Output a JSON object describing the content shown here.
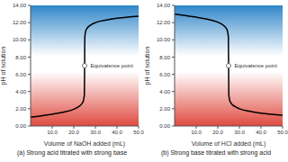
{
  "chart_data": [
    {
      "type": "line",
      "title": "(a) Strong acid titrated with strong base",
      "x_label": "Volume of NaOH added (mL)",
      "y_label": "pH of solution",
      "x": [
        0,
        5,
        10,
        15,
        20,
        22,
        24,
        24.5,
        24.9,
        25,
        25.1,
        25.5,
        26,
        28,
        30,
        35,
        40,
        45,
        50
      ],
      "values": [
        1.0,
        1.18,
        1.37,
        1.6,
        1.95,
        2.2,
        2.69,
        3.0,
        3.7,
        7.0,
        10.3,
        11.0,
        11.29,
        11.75,
        12.0,
        12.3,
        12.5,
        12.64,
        12.75
      ],
      "color": "#000000",
      "marker": "none",
      "line_style": "solid",
      "grid": false,
      "xlim": [
        0,
        50
      ],
      "xticks": [
        {
          "value": 10,
          "label": "10.0"
        },
        {
          "value": 20,
          "label": "20.0"
        },
        {
          "value": 30,
          "label": "30.0"
        },
        {
          "value": 40,
          "label": "40.0"
        },
        {
          "value": 50,
          "label": "50.0"
        }
      ],
      "ylim": [
        0,
        14
      ],
      "yticks": [
        {
          "value": 0,
          "label": "0.00"
        },
        {
          "value": 2,
          "label": "2.00"
        },
        {
          "value": 4,
          "label": "4.00"
        },
        {
          "value": 6,
          "label": "6.00"
        },
        {
          "value": 8,
          "label": "8.00"
        },
        {
          "value": 10,
          "label": "10.00"
        },
        {
          "value": 12,
          "label": "12.00"
        },
        {
          "value": 14,
          "label": "14.00"
        }
      ],
      "annotations": [
        {
          "text": "Equivalence point",
          "x": 25,
          "y": 7
        }
      ]
    },
    {
      "type": "line",
      "title": "(b) Strong base titrated with strong acid",
      "x_label": "Volume of HCl added (mL)",
      "y_label": "pH of solution",
      "x": [
        0,
        5,
        10,
        15,
        20,
        22,
        24,
        24.5,
        24.9,
        25,
        25.1,
        25.5,
        26,
        28,
        30,
        35,
        40,
        45,
        50
      ],
      "values": [
        13.0,
        12.82,
        12.63,
        12.4,
        12.05,
        11.8,
        11.31,
        11.0,
        10.3,
        7.0,
        3.7,
        3.0,
        2.71,
        2.25,
        2.0,
        1.7,
        1.5,
        1.36,
        1.25
      ],
      "color": "#000000",
      "marker": "none",
      "line_style": "solid",
      "grid": false,
      "xlim": [
        0,
        50
      ],
      "xticks": [
        {
          "value": 10,
          "label": "10.0"
        },
        {
          "value": 20,
          "label": "20.0"
        },
        {
          "value": 30,
          "label": "30.0"
        },
        {
          "value": 40,
          "label": "40.0"
        },
        {
          "value": 50,
          "label": "50.0"
        }
      ],
      "ylim": [
        0,
        14
      ],
      "yticks": [
        {
          "value": 0,
          "label": "0.00"
        },
        {
          "value": 2,
          "label": "2.00"
        },
        {
          "value": 4,
          "label": "4.00"
        },
        {
          "value": 6,
          "label": "6.00"
        },
        {
          "value": 8,
          "label": "8.00"
        },
        {
          "value": 10,
          "label": "10.00"
        },
        {
          "value": 12,
          "label": "12.00"
        },
        {
          "value": 14,
          "label": "14.00"
        }
      ],
      "annotations": [
        {
          "text": "Equivalence point",
          "x": 25,
          "y": 7
        }
      ]
    }
  ]
}
